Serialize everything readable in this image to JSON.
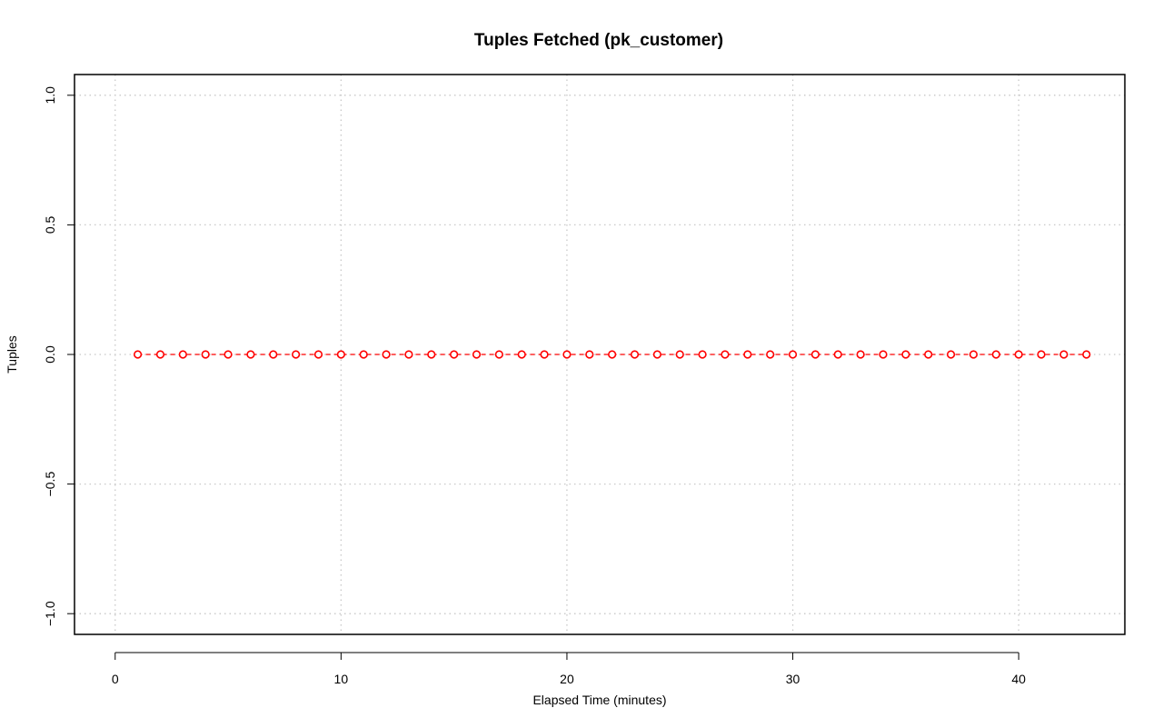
{
  "chart_data": {
    "type": "line",
    "title": "Tuples Fetched (pk_customer)",
    "xlabel": "Elapsed Time (minutes)",
    "ylabel": "Tuples",
    "xlim": [
      -1.8,
      44.7
    ],
    "ylim": [
      -1.08,
      1.08
    ],
    "x_ticks": [
      0,
      10,
      20,
      30,
      40
    ],
    "x_tick_labels": [
      "0",
      "10",
      "20",
      "30",
      "40"
    ],
    "y_ticks": [
      -1.0,
      -0.5,
      0.0,
      0.5,
      1.0
    ],
    "y_tick_labels": [
      "−1.0",
      "−0.5",
      "0.0",
      "0.5",
      "1.0"
    ],
    "grid": true,
    "series": [
      {
        "color": "#ff0000",
        "line_style": "dashed",
        "marker": "open-circle",
        "x": [
          1,
          2,
          3,
          4,
          5,
          6,
          7,
          8,
          9,
          10,
          11,
          12,
          13,
          14,
          15,
          16,
          17,
          18,
          19,
          20,
          21,
          22,
          23,
          24,
          25,
          26,
          27,
          28,
          29,
          30,
          31,
          32,
          33,
          34,
          35,
          36,
          37,
          38,
          39,
          40,
          41,
          42,
          43
        ],
        "y": [
          0,
          0,
          0,
          0,
          0,
          0,
          0,
          0,
          0,
          0,
          0,
          0,
          0,
          0,
          0,
          0,
          0,
          0,
          0,
          0,
          0,
          0,
          0,
          0,
          0,
          0,
          0,
          0,
          0,
          0,
          0,
          0,
          0,
          0,
          0,
          0,
          0,
          0,
          0,
          0,
          0,
          0,
          0
        ]
      }
    ]
  }
}
